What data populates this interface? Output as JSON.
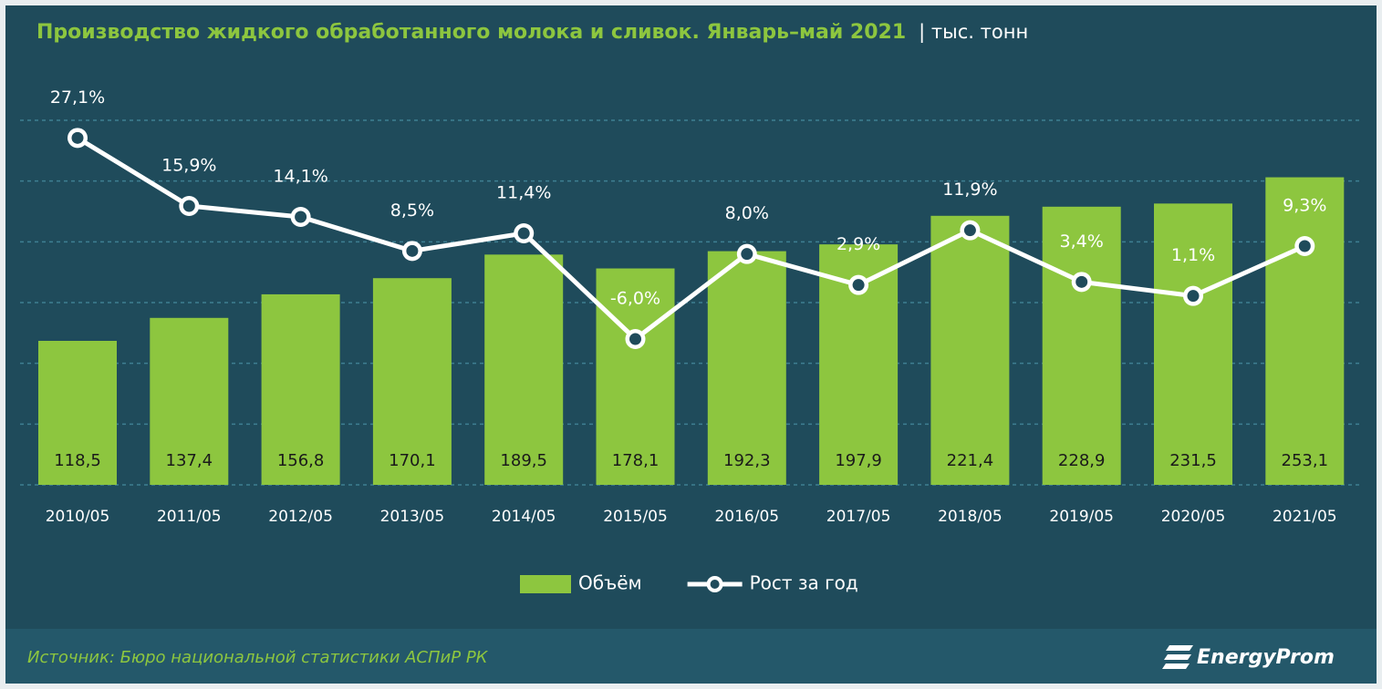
{
  "chart_data": {
    "type": "bar",
    "title": "Производство жидкого обработанного молока и сливок. Январь–май 2021",
    "subtitle": "| тыс. тонн",
    "categories": [
      "2010/05",
      "2011/05",
      "2012/05",
      "2013/05",
      "2014/05",
      "2015/05",
      "2016/05",
      "2017/05",
      "2018/05",
      "2019/05",
      "2020/05",
      "2021/05"
    ],
    "series": [
      {
        "name": "Объём",
        "type": "bar",
        "color": "#8dc63f",
        "values": [
          118.5,
          137.4,
          156.8,
          170.1,
          189.5,
          178.1,
          192.3,
          197.9,
          221.4,
          228.9,
          231.5,
          253.1
        ],
        "value_labels": [
          "118,5",
          "137,4",
          "156,8",
          "170,1",
          "189,5",
          "178,1",
          "192,3",
          "197,9",
          "221,4",
          "228,9",
          "231,5",
          "253,1"
        ]
      },
      {
        "name": "Рост за год",
        "type": "line",
        "axis": "y2",
        "color": "#ffffff",
        "values": [
          27.1,
          15.9,
          14.1,
          8.5,
          11.4,
          -6.0,
          8.0,
          2.9,
          11.9,
          3.4,
          1.1,
          9.3
        ],
        "value_labels": [
          "27,1%",
          "15,9%",
          "14,1%",
          "8,5%",
          "11,4%",
          "-6,0%",
          "8,0%",
          "2,9%",
          "11,9%",
          "3,4%",
          "1,1%",
          "9,3%"
        ]
      }
    ],
    "ylim": [
      0,
      300
    ],
    "yticks": [
      0,
      50,
      100,
      150,
      200,
      250,
      300
    ],
    "y2lim": [
      -30,
      30
    ],
    "grid": true,
    "legend": "bottom"
  },
  "source": "Источник: Бюро национальной  статистики  АСПиР РК",
  "logo": "EnergyProm"
}
